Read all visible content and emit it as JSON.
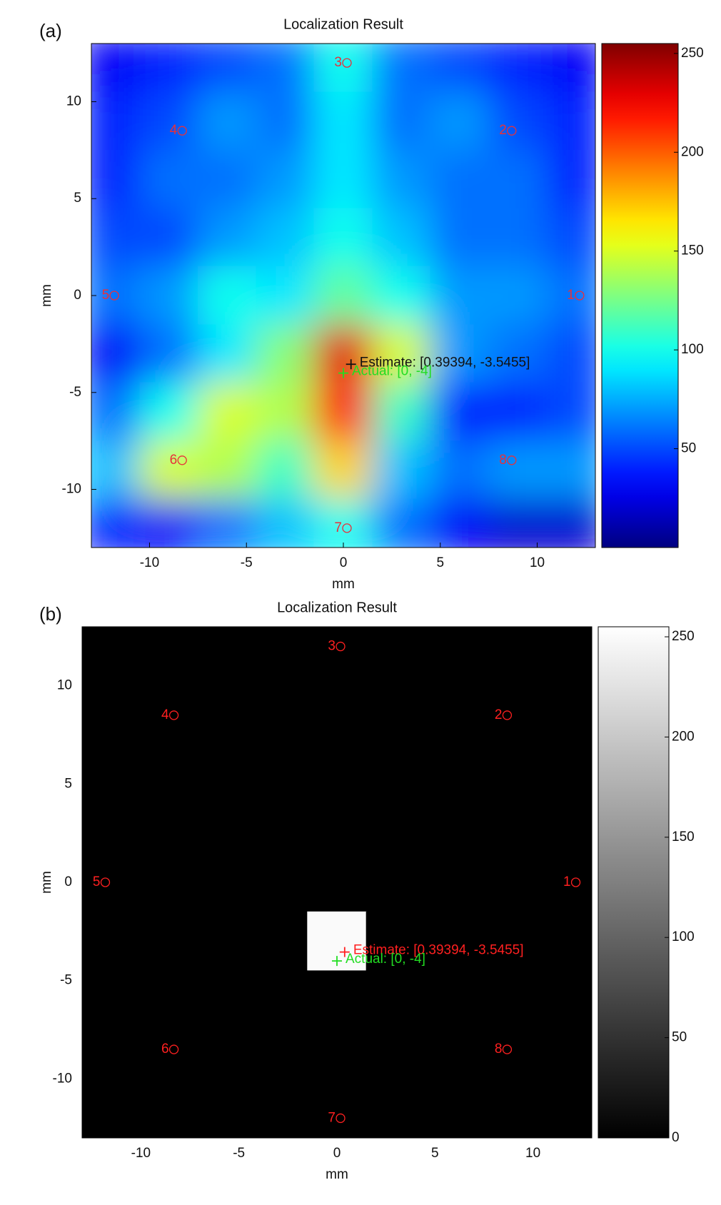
{
  "chart_data": [
    {
      "type": "heatmap",
      "panel": "(a)",
      "title": "Localization Result",
      "x_label": "mm",
      "y_label": "mm",
      "colormap": "jet",
      "shading": "interp",
      "x": [
        -12,
        -9,
        -6,
        -3,
        0,
        3,
        6,
        9,
        12
      ],
      "y": [
        12,
        9,
        6,
        3,
        0,
        -3,
        -6,
        -9,
        -12
      ],
      "z": [
        [
          30,
          40,
          50,
          60,
          100,
          60,
          50,
          40,
          30
        ],
        [
          40,
          50,
          70,
          60,
          90,
          60,
          70,
          50,
          40
        ],
        [
          40,
          60,
          60,
          70,
          90,
          70,
          60,
          60,
          40
        ],
        [
          50,
          50,
          70,
          80,
          100,
          80,
          60,
          60,
          50
        ],
        [
          60,
          70,
          100,
          90,
          120,
          100,
          70,
          70,
          60
        ],
        [
          30,
          60,
          90,
          130,
          230,
          150,
          70,
          60,
          50
        ],
        [
          60,
          100,
          150,
          140,
          220,
          110,
          40,
          40,
          50
        ],
        [
          80,
          150,
          140,
          110,
          170,
          80,
          60,
          70,
          70
        ],
        [
          40,
          30,
          60,
          80,
          100,
          60,
          30,
          20,
          20
        ]
      ],
      "xlim": [
        -13,
        13
      ],
      "ylim": [
        -13,
        13
      ],
      "xticks": [
        -10,
        -5,
        0,
        5,
        10
      ],
      "yticks": [
        -10,
        -5,
        0,
        5,
        10
      ],
      "clim": [
        0,
        255
      ],
      "cticks": [
        50,
        100,
        150,
        200,
        250
      ],
      "sensors": [
        {
          "label": "1",
          "x": 12,
          "y": 0
        },
        {
          "label": "2",
          "x": 8.5,
          "y": 8.5
        },
        {
          "label": "3",
          "x": 0,
          "y": 12
        },
        {
          "label": "4",
          "x": -8.5,
          "y": 8.5
        },
        {
          "label": "5",
          "x": -12,
          "y": 0
        },
        {
          "label": "6",
          "x": -8.5,
          "y": -8.5
        },
        {
          "label": "7",
          "x": 0,
          "y": -12
        },
        {
          "label": "8",
          "x": 8.5,
          "y": -8.5
        }
      ],
      "sensor_color": "#e8303a",
      "estimate": {
        "label": "Estimate: [0.39394, -3.5455]",
        "x": 0.39394,
        "y": -3.5455,
        "color": "#111111"
      },
      "actual": {
        "label": "Actual: [0, -4]",
        "x": 0,
        "y": -4,
        "color": "#22dd22"
      }
    },
    {
      "type": "heatmap",
      "panel": "(b)",
      "title": "Localization Result",
      "x_label": "mm",
      "y_label": "mm",
      "colormap": "gray",
      "shading": "flat",
      "x": [
        -12,
        -9,
        -6,
        -3,
        0,
        3,
        6,
        9,
        12
      ],
      "y": [
        12,
        9,
        6,
        3,
        0,
        -3,
        -6,
        -9,
        -12
      ],
      "z": [
        [
          0,
          0,
          0,
          0,
          0,
          0,
          0,
          0,
          0
        ],
        [
          0,
          0,
          0,
          0,
          0,
          0,
          0,
          0,
          0
        ],
        [
          0,
          0,
          0,
          0,
          0,
          0,
          0,
          0,
          0
        ],
        [
          0,
          0,
          0,
          0,
          0,
          0,
          0,
          0,
          0
        ],
        [
          0,
          0,
          0,
          0,
          0,
          0,
          0,
          0,
          0
        ],
        [
          0,
          0,
          0,
          0,
          250,
          0,
          0,
          0,
          0
        ],
        [
          0,
          0,
          0,
          0,
          0,
          0,
          0,
          0,
          0
        ],
        [
          0,
          0,
          0,
          0,
          0,
          0,
          0,
          0,
          0
        ],
        [
          0,
          0,
          0,
          0,
          0,
          0,
          0,
          0,
          0
        ]
      ],
      "xlim": [
        -13,
        13
      ],
      "ylim": [
        -13,
        13
      ],
      "xticks": [
        -10,
        -5,
        0,
        5,
        10
      ],
      "yticks": [
        -10,
        -5,
        0,
        5,
        10
      ],
      "clim": [
        0,
        255
      ],
      "cticks": [
        0,
        50,
        100,
        150,
        200,
        250
      ],
      "sensors": [
        {
          "label": "1",
          "x": 12,
          "y": 0
        },
        {
          "label": "2",
          "x": 8.5,
          "y": 8.5
        },
        {
          "label": "3",
          "x": 0,
          "y": 12
        },
        {
          "label": "4",
          "x": -8.5,
          "y": 8.5
        },
        {
          "label": "5",
          "x": -12,
          "y": 0
        },
        {
          "label": "6",
          "x": -8.5,
          "y": -8.5
        },
        {
          "label": "7",
          "x": 0,
          "y": -12
        },
        {
          "label": "8",
          "x": 8.5,
          "y": -8.5
        }
      ],
      "sensor_color": "#ff2020",
      "estimate": {
        "label": "Estimate: [0.39394, -3.5455]",
        "x": 0.39394,
        "y": -3.5455,
        "color": "#ff2020"
      },
      "actual": {
        "label": "Actual: [0, -4]",
        "x": 0,
        "y": -4,
        "color": "#22dd22"
      }
    }
  ]
}
